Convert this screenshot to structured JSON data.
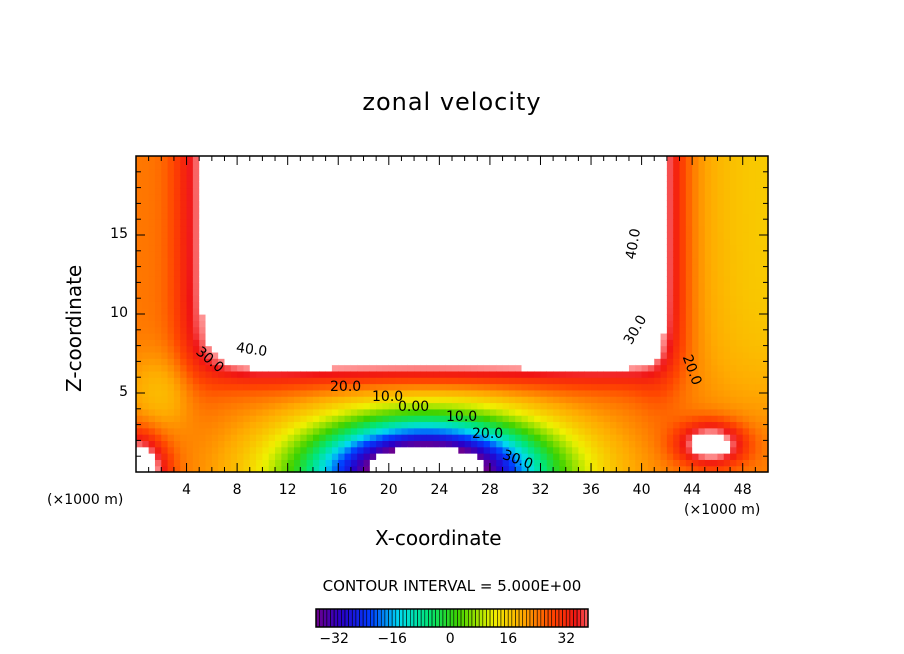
{
  "chart_data": {
    "type": "heatmap",
    "subtype": "filled-contour",
    "title": "zonal velocity",
    "xlabel": "X-coordinate",
    "ylabel": "Z-coordinate",
    "x_unit_label_left": "(×1000 m)",
    "x_unit_label_right": "(×1000 m)",
    "xlim": [
      0,
      50
    ],
    "ylim": [
      0,
      20
    ],
    "xticks": [
      4,
      8,
      12,
      16,
      20,
      24,
      28,
      32,
      36,
      40,
      44,
      48
    ],
    "yticks": [
      5,
      10,
      15
    ],
    "contour_interval_text": "CONTOUR INTERVAL = 5.000E+00",
    "contour_interval": 5,
    "contour_labels": [
      "40.0",
      "30.0",
      "20.0",
      "10.0",
      "0.00",
      "10.0",
      "20.0",
      "30.0",
      "40.0",
      "30.0",
      "20.0"
    ],
    "colorbar": {
      "range": [
        -37,
        38
      ],
      "ticks": [
        -32,
        -16,
        0,
        16,
        32
      ]
    }
  }
}
